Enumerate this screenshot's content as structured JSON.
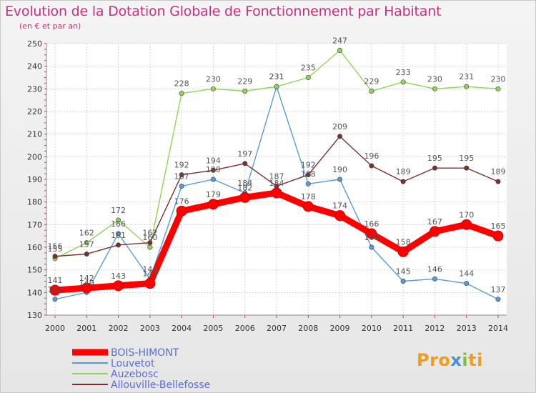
{
  "chart_data": {
    "type": "line",
    "title": "Evolution de la Dotation Globale de Fonctionnement par Habitant",
    "subtitle": "(en € et par an)",
    "x": [
      "2000",
      "2001",
      "2002",
      "2003",
      "2004",
      "2005",
      "2006",
      "2007",
      "2008",
      "2009",
      "2010",
      "2011",
      "2012",
      "2013",
      "2014"
    ],
    "yticks": [
      130,
      140,
      150,
      160,
      170,
      180,
      190,
      200,
      210,
      220,
      230,
      240,
      250
    ],
    "ylim": [
      130,
      250
    ],
    "grid": true,
    "legend_position": "bottom-left",
    "series": [
      {
        "name": "BOIS-HIMONT",
        "color": "#ff0000",
        "emphasis": true,
        "values": [
          141,
          142,
          143,
          144,
          176,
          179,
          182,
          184,
          178,
          174,
          166,
          158,
          167,
          170,
          165
        ]
      },
      {
        "name": "Louvetot",
        "color": "#5b9bd5",
        "emphasis": false,
        "values": [
          137,
          140,
          166,
          146,
          187,
          190,
          184,
          231,
          188,
          190,
          160,
          145,
          146,
          144,
          137
        ]
      },
      {
        "name": "Auzebosc",
        "color": "#8fd35a",
        "emphasis": false,
        "values": [
          155,
          162,
          172,
          160,
          228,
          230,
          229,
          231,
          235,
          247,
          229,
          233,
          230,
          231,
          230
        ]
      },
      {
        "name": "Allouville-Bellefosse",
        "color": "#7b2e2e",
        "emphasis": false,
        "values": [
          156,
          157,
          161,
          162,
          192,
          194,
          197,
          187,
          192,
          209,
          196,
          189,
          195,
          195,
          189
        ]
      }
    ]
  },
  "logo": {
    "parts": [
      "Pro",
      "x",
      "i",
      "ti"
    ]
  }
}
